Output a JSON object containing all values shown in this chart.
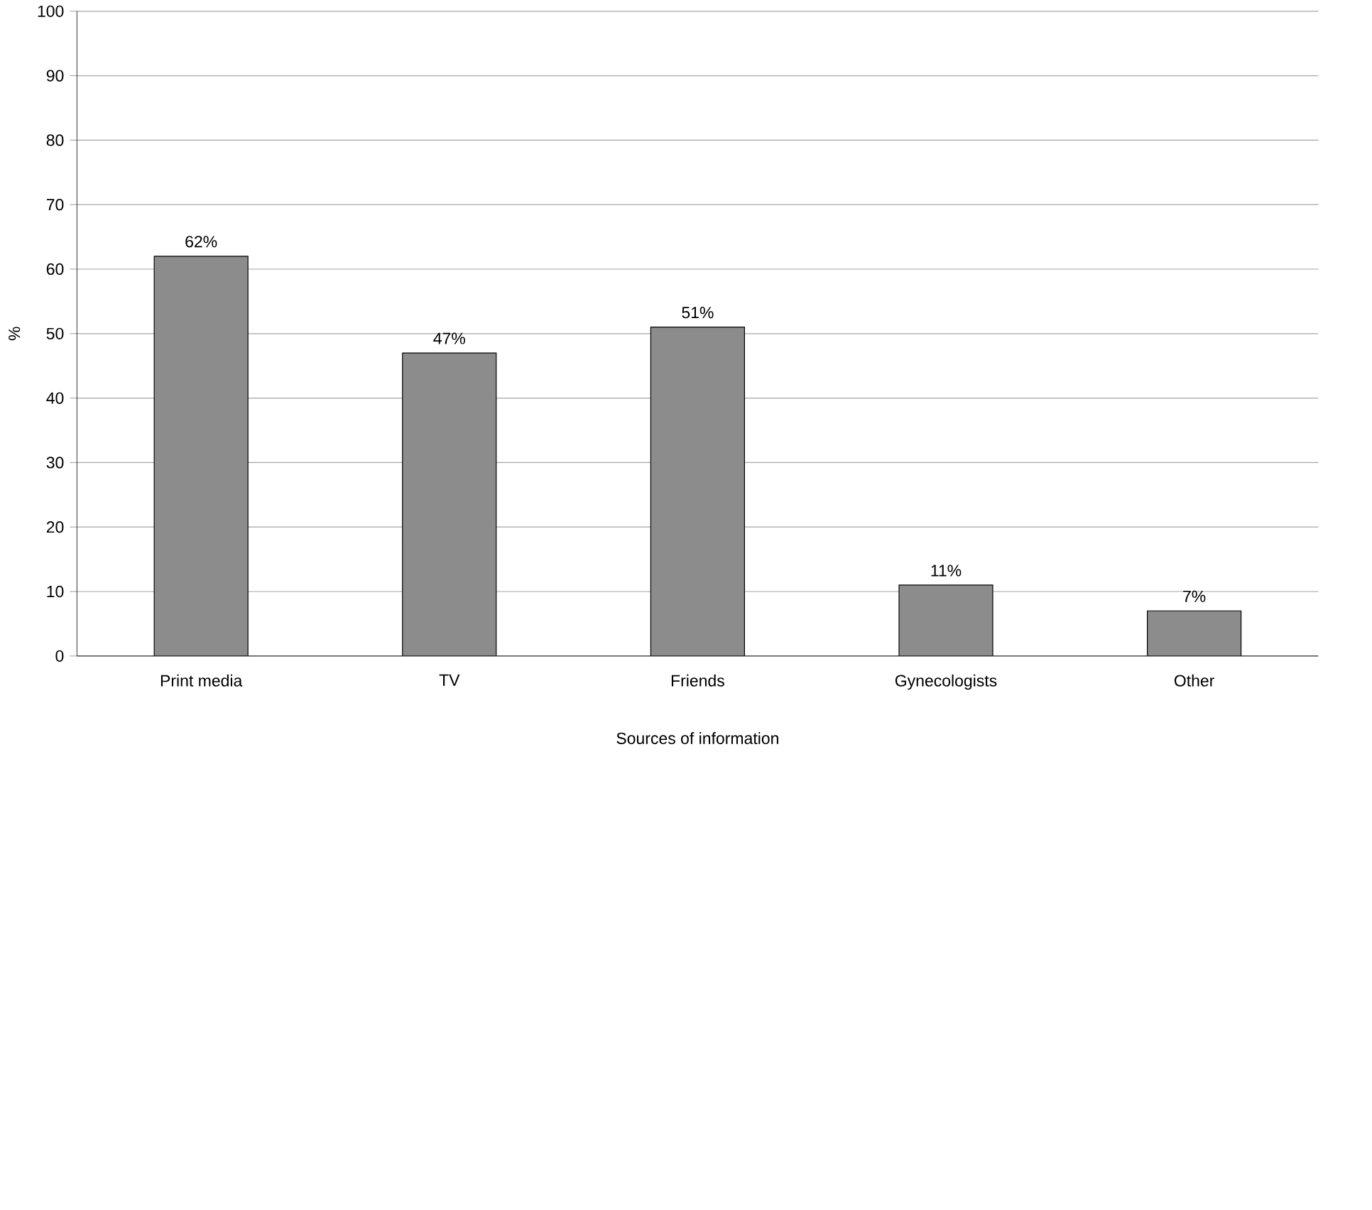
{
  "chart_data": {
    "type": "bar",
    "xlabel": "Sources of information",
    "ylabel": "%",
    "categories": [
      "Print media",
      "TV",
      "Friends",
      "Gynecologists",
      "Other"
    ],
    "values": [
      62,
      47,
      51,
      11,
      7
    ],
    "value_labels": [
      "62%",
      "47%",
      "51%",
      "11%",
      "7%"
    ],
    "color": "#8c8c8c",
    "ylim": [
      0,
      100
    ],
    "yticks": [
      0,
      10,
      20,
      30,
      40,
      50,
      60,
      70,
      80,
      90,
      100
    ],
    "grid": "y"
  }
}
